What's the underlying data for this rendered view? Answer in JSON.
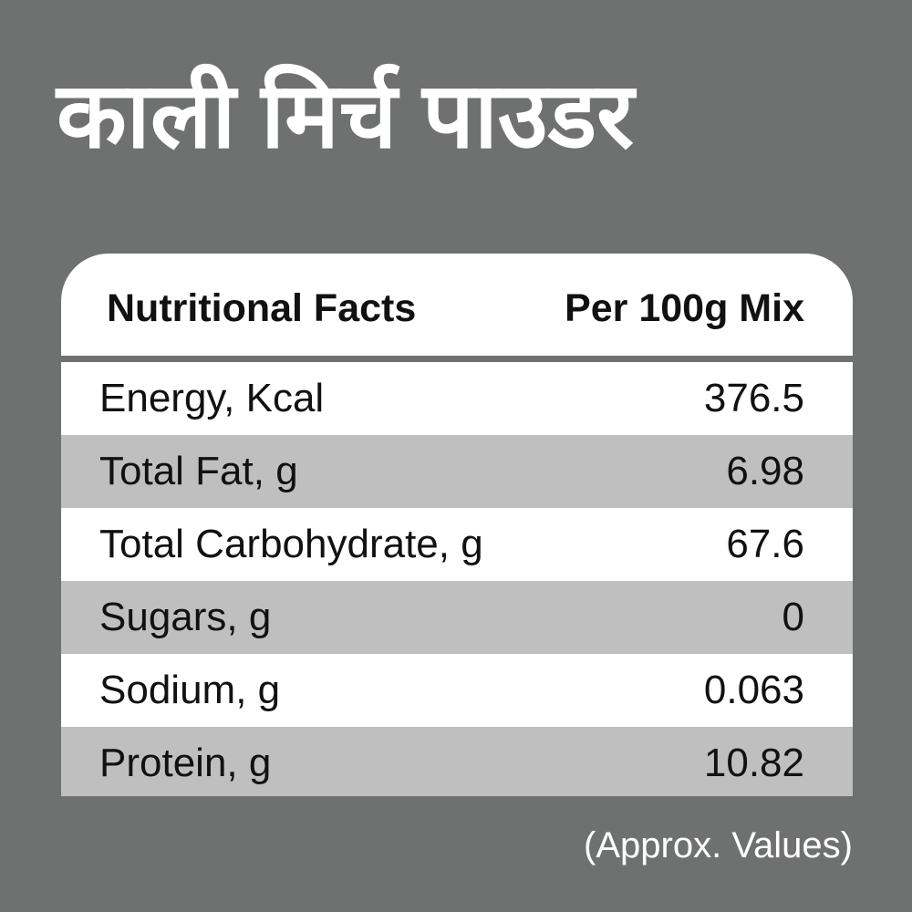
{
  "header": {
    "title": "काली मिर्च पाउडर"
  },
  "table": {
    "columns": [
      "Nutritional Facts",
      "Per 100g Mix"
    ],
    "rows": [
      [
        "Energy, Kcal",
        "376.5"
      ],
      [
        "Total Fat, g",
        "6.98"
      ],
      [
        "Total Carbohydrate, g",
        "67.6"
      ],
      [
        "Sugars, g",
        "0"
      ],
      [
        "Sodium, g",
        "0.063"
      ],
      [
        "Protein, g",
        "10.82"
      ]
    ]
  },
  "footer": {
    "note": "(Approx. Values)"
  }
}
